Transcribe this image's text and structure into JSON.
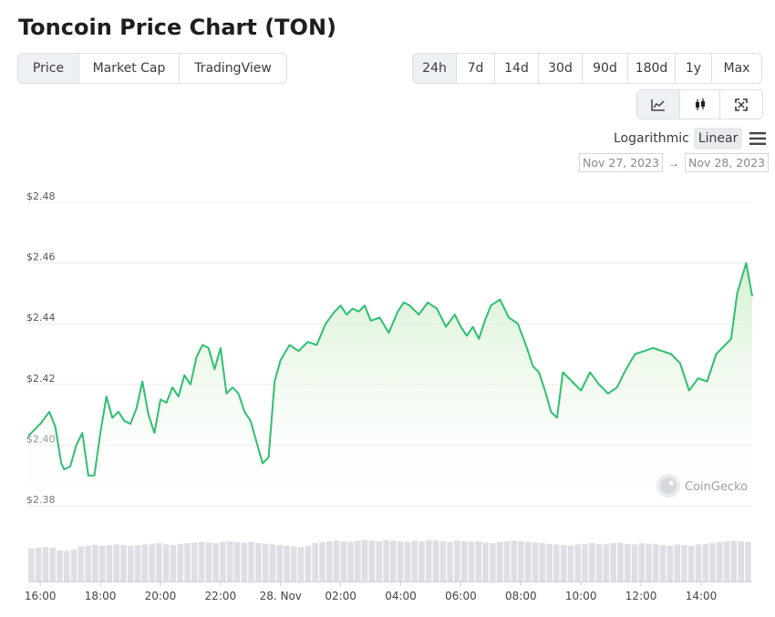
{
  "title": "Toncoin Price Chart (TON)",
  "view_tabs": [
    {
      "label": "Price",
      "active": true
    },
    {
      "label": "Market Cap",
      "active": false
    },
    {
      "label": "TradingView",
      "active": false
    }
  ],
  "range_tabs": [
    {
      "label": "24h",
      "active": true
    },
    {
      "label": "7d",
      "active": false
    },
    {
      "label": "14d",
      "active": false
    },
    {
      "label": "30d",
      "active": false
    },
    {
      "label": "90d",
      "active": false
    },
    {
      "label": "180d",
      "active": false
    },
    {
      "label": "1y",
      "active": false
    },
    {
      "label": "Max",
      "active": false
    }
  ],
  "chart_types": [
    {
      "icon": "line-chart-icon",
      "active": true
    },
    {
      "icon": "candlestick-icon",
      "active": false
    },
    {
      "icon": "fullscreen-icon",
      "active": false
    }
  ],
  "scale": {
    "logarithmic": "Logarithmic",
    "linear": "Linear",
    "selected": "Linear"
  },
  "date_range": {
    "from": "Nov 27, 2023",
    "arrow": "→",
    "to": "Nov 28, 2023"
  },
  "watermark": "CoinGecko",
  "colors": {
    "line": "#2fbf71",
    "fill": "#dff3d9",
    "volume": "#dcdfe4",
    "grid": "#ececec"
  },
  "chart_data": {
    "type": "line",
    "ylim": [
      2.38,
      2.48
    ],
    "y_ticks": [
      2.38,
      2.4,
      2.42,
      2.44,
      2.46,
      2.48
    ],
    "y_tick_labels": [
      "$2.38",
      "$2.40",
      "$2.42",
      "$2.44",
      "$2.46",
      "$2.48"
    ],
    "x_tick_labels": [
      "16:00",
      "18:00",
      "20:00",
      "22:00",
      "28. Nov",
      "02:00",
      "04:00",
      "06:00",
      "08:00",
      "10:00",
      "12:00",
      "14:00"
    ],
    "x_hours": [
      0,
      2,
      4,
      6,
      8,
      10,
      12,
      14,
      16,
      18,
      20,
      22
    ],
    "x_start_hour": -0.4,
    "x_end_hour": 23.7,
    "series": [
      {
        "name": "Price",
        "x": [
          -0.4,
          0.0,
          0.3,
          0.5,
          0.7,
          0.8,
          1.0,
          1.2,
          1.4,
          1.6,
          1.8,
          2.0,
          2.2,
          2.4,
          2.6,
          2.8,
          3.0,
          3.2,
          3.4,
          3.6,
          3.8,
          4.0,
          4.2,
          4.4,
          4.6,
          4.8,
          5.0,
          5.2,
          5.4,
          5.6,
          5.8,
          6.0,
          6.2,
          6.4,
          6.6,
          6.8,
          7.0,
          7.2,
          7.4,
          7.6,
          7.8,
          8.0,
          8.3,
          8.6,
          8.9,
          9.2,
          9.5,
          9.8,
          10.0,
          10.2,
          10.4,
          10.6,
          10.8,
          11.0,
          11.3,
          11.6,
          11.9,
          12.1,
          12.3,
          12.6,
          12.9,
          13.2,
          13.5,
          13.8,
          14.0,
          14.2,
          14.4,
          14.6,
          14.8,
          15.0,
          15.3,
          15.6,
          15.9,
          16.2,
          16.4,
          16.6,
          16.8,
          17.0,
          17.2,
          17.4,
          17.7,
          18.0,
          18.3,
          18.6,
          18.9,
          19.2,
          19.5,
          19.8,
          20.1,
          20.4,
          20.7,
          21.0,
          21.3,
          21.6,
          21.9,
          22.2,
          22.5,
          22.8,
          23.0,
          23.2,
          23.5,
          23.7
        ],
        "values": [
          2.403,
          2.407,
          2.411,
          2.406,
          2.394,
          2.392,
          2.393,
          2.4,
          2.404,
          2.39,
          2.39,
          2.404,
          2.416,
          2.409,
          2.411,
          2.408,
          2.407,
          2.412,
          2.421,
          2.41,
          2.404,
          2.415,
          2.414,
          2.419,
          2.416,
          2.423,
          2.42,
          2.429,
          2.433,
          2.432,
          2.425,
          2.432,
          2.417,
          2.419,
          2.417,
          2.411,
          2.408,
          2.401,
          2.394,
          2.396,
          2.421,
          2.428,
          2.433,
          2.431,
          2.434,
          2.433,
          2.44,
          2.444,
          2.446,
          2.443,
          2.445,
          2.444,
          2.446,
          2.441,
          2.442,
          2.437,
          2.444,
          2.447,
          2.446,
          2.443,
          2.447,
          2.445,
          2.439,
          2.443,
          2.439,
          2.436,
          2.439,
          2.435,
          2.441,
          2.446,
          2.448,
          2.442,
          2.44,
          2.432,
          2.426,
          2.424,
          2.418,
          2.411,
          2.409,
          2.424,
          2.421,
          2.418,
          2.424,
          2.42,
          2.417,
          2.419,
          2.425,
          2.43,
          2.431,
          2.432,
          2.431,
          2.43,
          2.427,
          2.418,
          2.422,
          2.421,
          2.43,
          2.433,
          2.435,
          2.45,
          2.46,
          2.449
        ]
      }
    ],
    "volume": {
      "note_units": "relative",
      "values": [
        0.52,
        0.53,
        0.54,
        0.53,
        0.49,
        0.48,
        0.5,
        0.55,
        0.56,
        0.57,
        0.56,
        0.57,
        0.58,
        0.57,
        0.56,
        0.57,
        0.58,
        0.59,
        0.6,
        0.58,
        0.57,
        0.59,
        0.6,
        0.61,
        0.62,
        0.61,
        0.6,
        0.62,
        0.63,
        0.62,
        0.61,
        0.62,
        0.6,
        0.59,
        0.58,
        0.57,
        0.56,
        0.55,
        0.54,
        0.56,
        0.6,
        0.62,
        0.63,
        0.64,
        0.63,
        0.62,
        0.64,
        0.65,
        0.64,
        0.63,
        0.65,
        0.64,
        0.63,
        0.62,
        0.64,
        0.63,
        0.65,
        0.64,
        0.63,
        0.62,
        0.64,
        0.63,
        0.62,
        0.63,
        0.61,
        0.6,
        0.62,
        0.63,
        0.64,
        0.63,
        0.62,
        0.61,
        0.6,
        0.59,
        0.58,
        0.57,
        0.56,
        0.58,
        0.59,
        0.6,
        0.59,
        0.58,
        0.6,
        0.61,
        0.59,
        0.58,
        0.6,
        0.59,
        0.58,
        0.57,
        0.56,
        0.58,
        0.57,
        0.56,
        0.58,
        0.59,
        0.6,
        0.62,
        0.63,
        0.64,
        0.63,
        0.62
      ]
    }
  }
}
